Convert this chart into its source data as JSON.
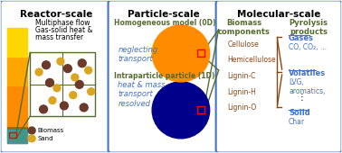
{
  "bg_color": "#f0f0f0",
  "panel_bg": "#ffffff",
  "border_color": "#4472c4",
  "panel_titles": [
    "Reactor-scale",
    "Particle-scale",
    "Molecular-scale"
  ],
  "panel_title_color": "#000000",
  "panel_title_fontsize": 7.5,
  "reactor_text": [
    "Multiphase flow",
    "Gas-solid heat &",
    "mass transfer"
  ],
  "reactor_text_color": "#000000",
  "biomass_label": "Biomass",
  "sand_label": "Sand",
  "homogeneous_label": "Homogeneous model (0D)",
  "neglecting_label": "neglecting\ntransport",
  "intraparticle_label": "Intraparticle particle (1D)",
  "heat_mass_label": "heat & mass\ntransport\nresolved",
  "green_label_color": "#556b2f",
  "blue_italic_color": "#4472c4",
  "biomass_components_title": "Biomass\ncomponents",
  "pyrolysis_products_title": "Pyrolysis\nproducts",
  "components_color": "#556b2f",
  "products_color": "#556b2f",
  "biomass_components": [
    "Cellulose",
    "Hemicellulose",
    "Lignin-C",
    "Lignin-H",
    "Lignin-O"
  ],
  "components_text_color": "#8B4513",
  "gases_label": "Gases",
  "gases_items": "CO, CO₂, ...",
  "volatiles_label": "Volatiles",
  "volatiles_items": "LVG,\naromatics,",
  "solid_label": "Solid",
  "solid_items": "Char",
  "products_text_color": "#4472c4",
  "underline_color": "#4472c4",
  "dot_color": "#000000"
}
